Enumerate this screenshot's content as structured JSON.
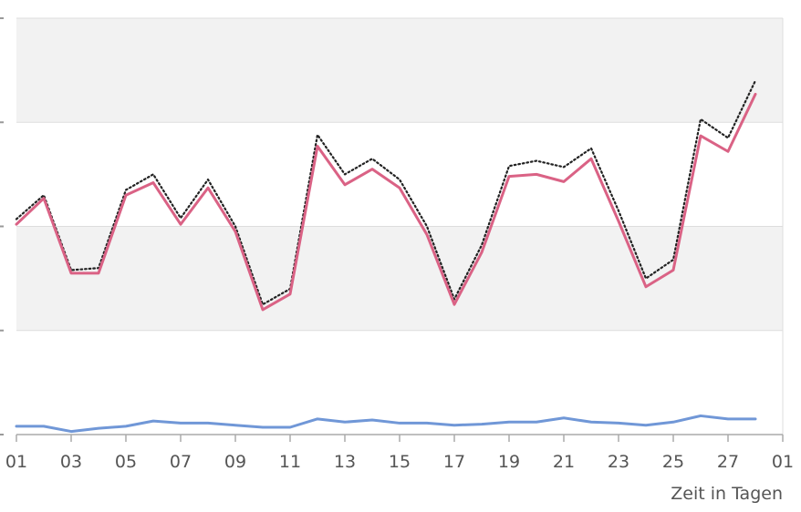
{
  "chart_data": {
    "type": "line",
    "x": [
      1,
      2,
      3,
      4,
      5,
      6,
      7,
      8,
      9,
      10,
      11,
      12,
      13,
      14,
      15,
      16,
      17,
      18,
      19,
      20,
      21,
      22,
      23,
      24,
      25,
      26,
      27,
      28
    ],
    "x_tick_labels": [
      "01",
      "03",
      "05",
      "07",
      "09",
      "11",
      "13",
      "15",
      "17",
      "19",
      "21",
      "23",
      "25",
      "27",
      "01"
    ],
    "xlabel": "Zeit in Tagen",
    "ylim": [
      0,
      4
    ],
    "grid": true,
    "series": [
      {
        "color": "#da6285",
        "style": "solid",
        "values": [
          2.02,
          2.27,
          1.55,
          1.55,
          2.3,
          2.42,
          2.02,
          2.37,
          1.95,
          1.2,
          1.35,
          2.77,
          2.4,
          2.55,
          2.37,
          1.92,
          1.25,
          1.75,
          2.48,
          2.5,
          2.43,
          2.65,
          2.05,
          1.42,
          1.58,
          2.87,
          2.72,
          3.27
        ]
      },
      {
        "color": "#222222",
        "style": "dotted",
        "values": [
          2.07,
          2.3,
          1.58,
          1.6,
          2.35,
          2.5,
          2.08,
          2.45,
          2.0,
          1.25,
          1.4,
          2.88,
          2.5,
          2.65,
          2.45,
          2.0,
          1.3,
          1.82,
          2.58,
          2.63,
          2.57,
          2.75,
          2.15,
          1.5,
          1.68,
          3.03,
          2.85,
          3.4
        ]
      },
      {
        "color": "#7097d7",
        "style": "solid",
        "values": [
          0.08,
          0.08,
          0.03,
          0.06,
          0.08,
          0.13,
          0.11,
          0.11,
          0.09,
          0.07,
          0.07,
          0.15,
          0.12,
          0.14,
          0.11,
          0.11,
          0.09,
          0.1,
          0.12,
          0.12,
          0.16,
          0.12,
          0.11,
          0.09,
          0.12,
          0.18,
          0.15,
          0.15
        ]
      }
    ]
  }
}
